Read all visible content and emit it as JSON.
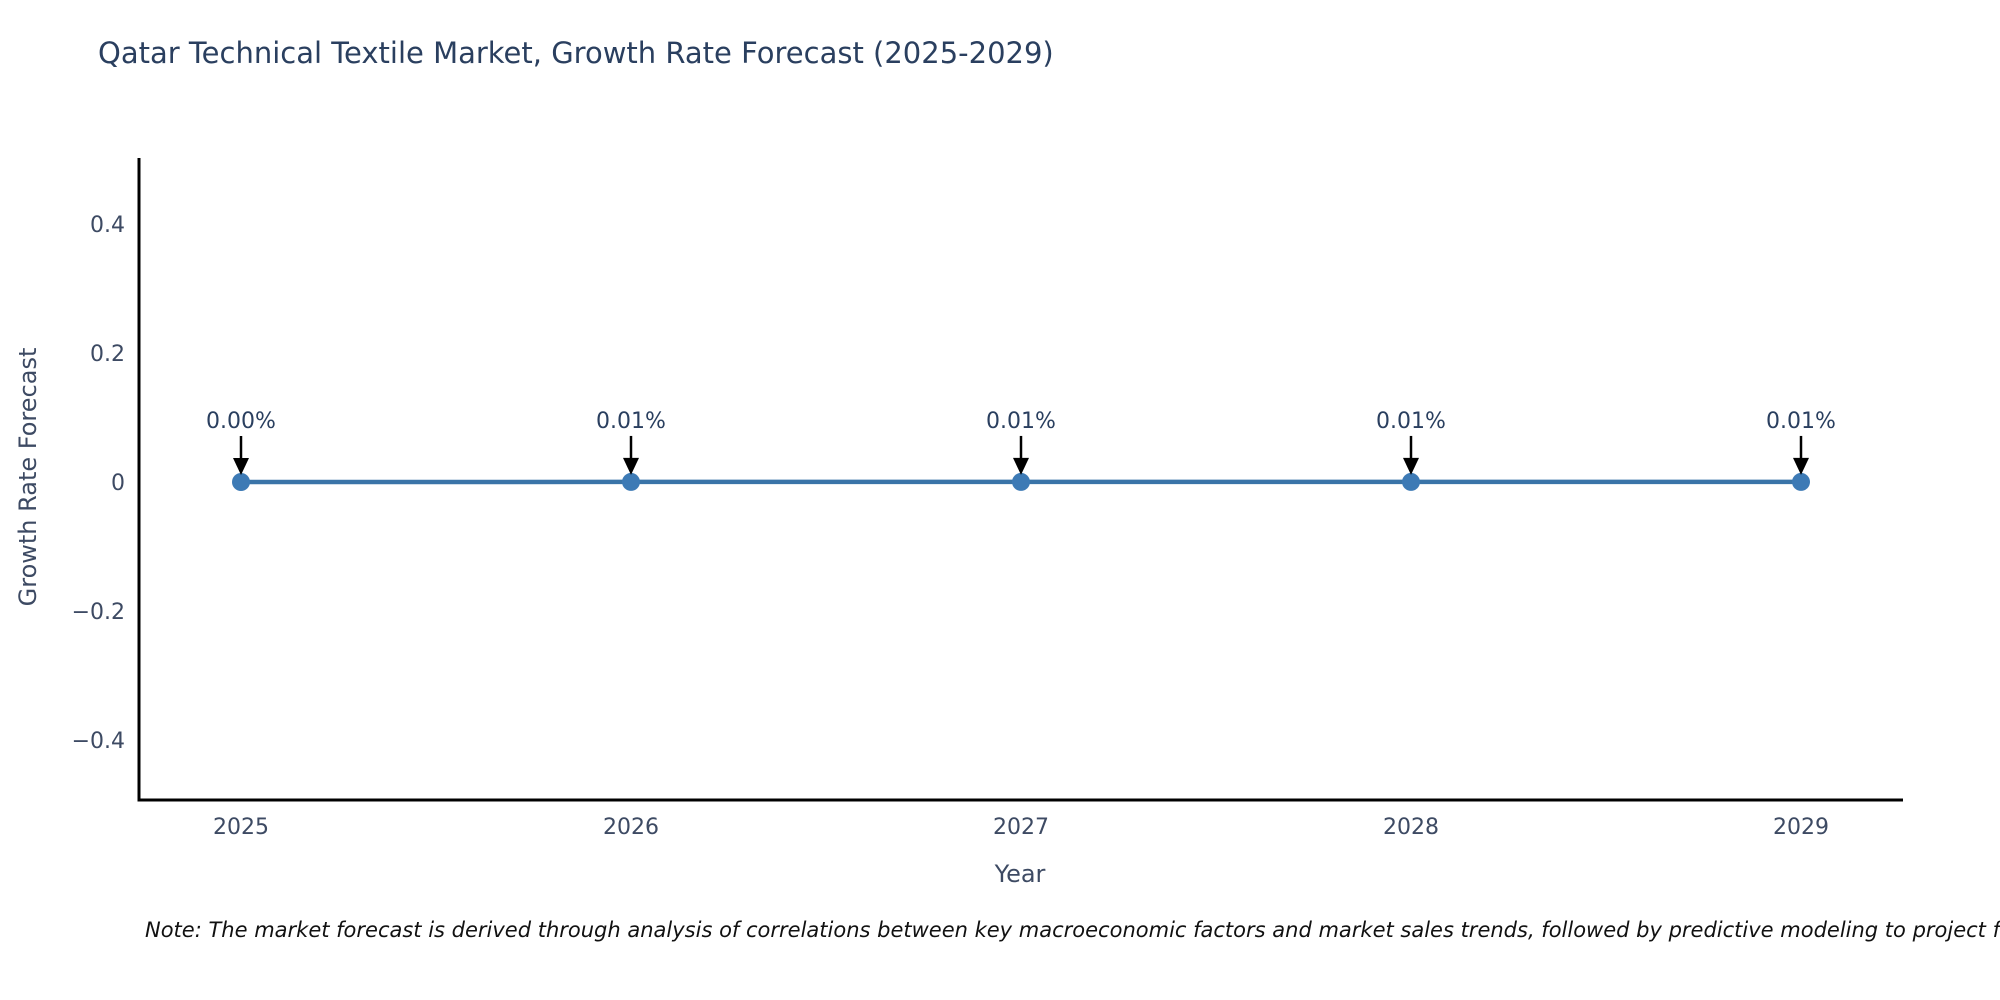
{
  "title": "Qatar Technical Textile Market, Growth Rate Forecast (2025-2029)",
  "note": "Note: The market forecast is derived through analysis of correlations between key macroeconomic factors and market sales trends, followed by predictive modeling to project future sales.",
  "chart_data": {
    "type": "line",
    "title": "Qatar Technical Textile Market, Growth Rate Forecast (2025-2029)",
    "xlabel": "Year",
    "ylabel": "Growth Rate Forecast",
    "x": [
      2025,
      2026,
      2027,
      2028,
      2029
    ],
    "values": [
      0.0,
      0.0001,
      0.0001,
      0.0001,
      0.0001
    ],
    "values_percent_labels": [
      "0.00%",
      "0.01%",
      "0.01%",
      "0.01%",
      "0.01%"
    ],
    "xtick_labels": [
      "2025",
      "2026",
      "2027",
      "2028",
      "2029"
    ],
    "yticks": [
      0.4,
      0.2,
      0,
      -0.2,
      -0.4
    ],
    "ytick_labels": [
      "0.4",
      "0.2",
      "0",
      "−0.2",
      "−0.4"
    ],
    "ylim": [
      -0.5,
      0.5
    ],
    "grid": false,
    "legend": "none",
    "colors": {
      "line": "#3a74a8",
      "marker": "#3d7ab5",
      "axis": "#000000",
      "arrow": "#000000",
      "title_text": "#2a3f5f",
      "tick_text": "#3d4a63",
      "annotation_text": "#2a3f5f"
    }
  }
}
